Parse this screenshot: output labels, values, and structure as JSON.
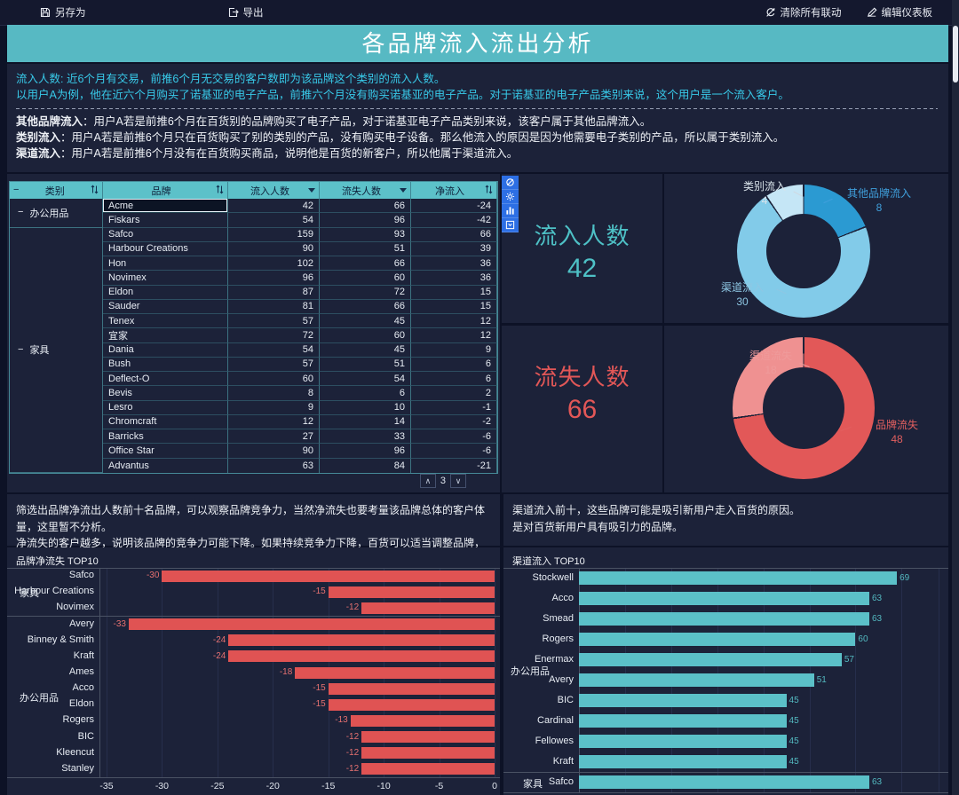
{
  "topbar": {
    "save_as": "另存为",
    "export": "导出",
    "clear_linkage": "清除所有联动",
    "edit_dashboard": "编辑仪表板"
  },
  "title": "各品牌流入流出分析",
  "description": {
    "highlight_lines": [
      "流入人数: 近6个月有交易，前推6个月无交易的客户数即为该品牌这个类别的流入人数。",
      "以用户A为例，他在近六个月购买了诺基亚的电子产品，前推六个月没有购买诺基亚的电子产品。对于诺基亚的电子产品类别来说，这个用户是一个流入客户。"
    ],
    "definitions": [
      {
        "term": "其他品牌流入",
        "text": "：用户A若是前推6个月在百货别的品牌购买了电子产品，对于诺基亚电子产品类别来说，该客户属于其他品牌流入。"
      },
      {
        "term": "类别流入",
        "text": "：用户A若是前推6个月只在百货购买了别的类别的产品，没有购买电子设备。那么他流入的原因是因为他需要电子类别的产品，所以属于类别流入。"
      },
      {
        "term": "渠道流入",
        "text": "：用户A若是前推6个月没有在百货购买商品，说明他是百货的新客户，所以他属于渠道流入。"
      }
    ]
  },
  "table": {
    "columns": [
      {
        "label": "类别",
        "icon": "sort-icon"
      },
      {
        "label": "品牌",
        "icon": "sort-icon"
      },
      {
        "label": "流入人数",
        "icon": "filter-caret-icon"
      },
      {
        "label": "流失人数",
        "icon": "filter-caret-icon"
      },
      {
        "label": "净流入",
        "icon": "sort-icon"
      }
    ],
    "groups": [
      {
        "category": "办公用品",
        "rows": [
          [
            "Acme",
            42,
            66,
            -24
          ],
          [
            "Fiskars",
            54,
            96,
            -42
          ]
        ]
      },
      {
        "category": "家具",
        "rows": [
          [
            "Safco",
            159,
            93,
            66
          ],
          [
            "Harbour Creations",
            90,
            51,
            39
          ],
          [
            "Hon",
            102,
            66,
            36
          ],
          [
            "Novimex",
            96,
            60,
            36
          ],
          [
            "Eldon",
            87,
            72,
            15
          ],
          [
            "Sauder",
            81,
            66,
            15
          ],
          [
            "Tenex",
            57,
            45,
            12
          ],
          [
            "宜家",
            72,
            60,
            12
          ],
          [
            "Dania",
            54,
            45,
            9
          ],
          [
            "Bush",
            57,
            51,
            6
          ],
          [
            "Deflect-O",
            60,
            54,
            6
          ],
          [
            "Bevis",
            8,
            6,
            2
          ],
          [
            "Lesro",
            9,
            10,
            -1
          ],
          [
            "Chromcraft",
            12,
            14,
            -2
          ],
          [
            "Barricks",
            27,
            33,
            -6
          ],
          [
            "Office Star",
            90,
            96,
            -6
          ],
          [
            "Advantus",
            63,
            84,
            -21
          ]
        ]
      }
    ],
    "selected_brand": "Acme",
    "pagination": {
      "up": "∧",
      "page": "3",
      "down": "∨"
    }
  },
  "widget_toolbar": {
    "icons": [
      "clear-linkage-icon",
      "settings-icon",
      "chart-type-icon",
      "collapse-icon"
    ]
  },
  "kpis": {
    "inflow": {
      "label": "流入人数",
      "value": "42",
      "color": "#4ec1c6"
    },
    "outflow": {
      "label": "流失人数",
      "value": "66",
      "color": "#e25757"
    }
  },
  "notes": {
    "left": [
      "筛选出品牌净流出人数前十名品牌，可以观察品牌竞争力，当然净流失也要考量该品牌总体的客户体量，这里暂不分析。",
      "净流失的客户越多，说明该品牌的竞争力可能下降。如果持续竞争力下降，百货可以适当调整品牌，更换更具竞争力的品牌。"
    ],
    "right": [
      "渠道流入前十，这些品牌可能是吸引新用户走入百货的原因。",
      "是对百货新用户具有吸引力的品牌。"
    ]
  },
  "chart_data": [
    {
      "type": "pie",
      "title": "流入人数构成",
      "total": 42,
      "series": [
        {
          "name": "其他品牌流入",
          "value": 8,
          "color": "#2b9ad2"
        },
        {
          "name": "渠道流入",
          "value": 30,
          "color": "#82cbe9"
        },
        {
          "name": "类别流入",
          "value": 4,
          "color": "#c5e6f6"
        }
      ],
      "legend_position": "callout-labels"
    },
    {
      "type": "pie",
      "title": "流失人数构成",
      "total": 66,
      "series": [
        {
          "name": "品牌流失",
          "value": 48,
          "color": "#e25858"
        },
        {
          "name": "渠道流失",
          "value": 18,
          "color": "#ef9191"
        }
      ],
      "legend_position": "callout-labels"
    },
    {
      "type": "bar",
      "title": "品牌净流失 TOP10",
      "orientation": "horizontal",
      "bar_color": "#e05353",
      "value_label_color": "#e57070",
      "xlim": [
        -35.6,
        0
      ],
      "x_ticks": [
        -35,
        -30,
        -25,
        -20,
        -15,
        -10,
        -5,
        0
      ],
      "grid": true,
      "groups": [
        {
          "category": "家具",
          "items": [
            [
              "Safco",
              -30
            ],
            [
              "Harbour Creations",
              -15
            ],
            [
              "Novimex",
              -12
            ]
          ]
        },
        {
          "category": "办公用品",
          "items": [
            [
              "Avery",
              -33
            ],
            [
              "Binney & Smith",
              -24
            ],
            [
              "Kraft",
              -24
            ],
            [
              "Ames",
              -18
            ],
            [
              "Acco",
              -15
            ],
            [
              "Eldon",
              -15
            ],
            [
              "Rogers",
              -13
            ],
            [
              "BIC",
              -12
            ],
            [
              "Kleencut",
              -12
            ],
            [
              "Stanley",
              -12
            ]
          ]
        }
      ]
    },
    {
      "type": "bar",
      "title": "渠道流入 TOP10",
      "orientation": "horizontal",
      "bar_color": "#5bc0c8",
      "value_label_color": "#53b9c0",
      "xlim": [
        0,
        78
      ],
      "grid_step": 10,
      "grid": true,
      "groups": [
        {
          "category": "办公用品",
          "items": [
            [
              "Stockwell",
              69
            ],
            [
              "Acco",
              63
            ],
            [
              "Smead",
              63
            ],
            [
              "Rogers",
              60
            ],
            [
              "Enermax",
              57
            ],
            [
              "Avery",
              51
            ],
            [
              "BIC",
              45
            ],
            [
              "Cardinal",
              45
            ],
            [
              "Fellowes",
              45
            ],
            [
              "Kraft",
              45
            ]
          ]
        },
        {
          "category": "家具",
          "items": [
            [
              "Safco",
              63
            ]
          ]
        }
      ]
    }
  ],
  "colors": {
    "banner_teal": "#57b9c3",
    "table_header_teal": "#5cc1c9",
    "description_cyan": "#38c9e8",
    "panel_bg": "#1c2239",
    "toolbar_blue": "#2d6fe4"
  }
}
